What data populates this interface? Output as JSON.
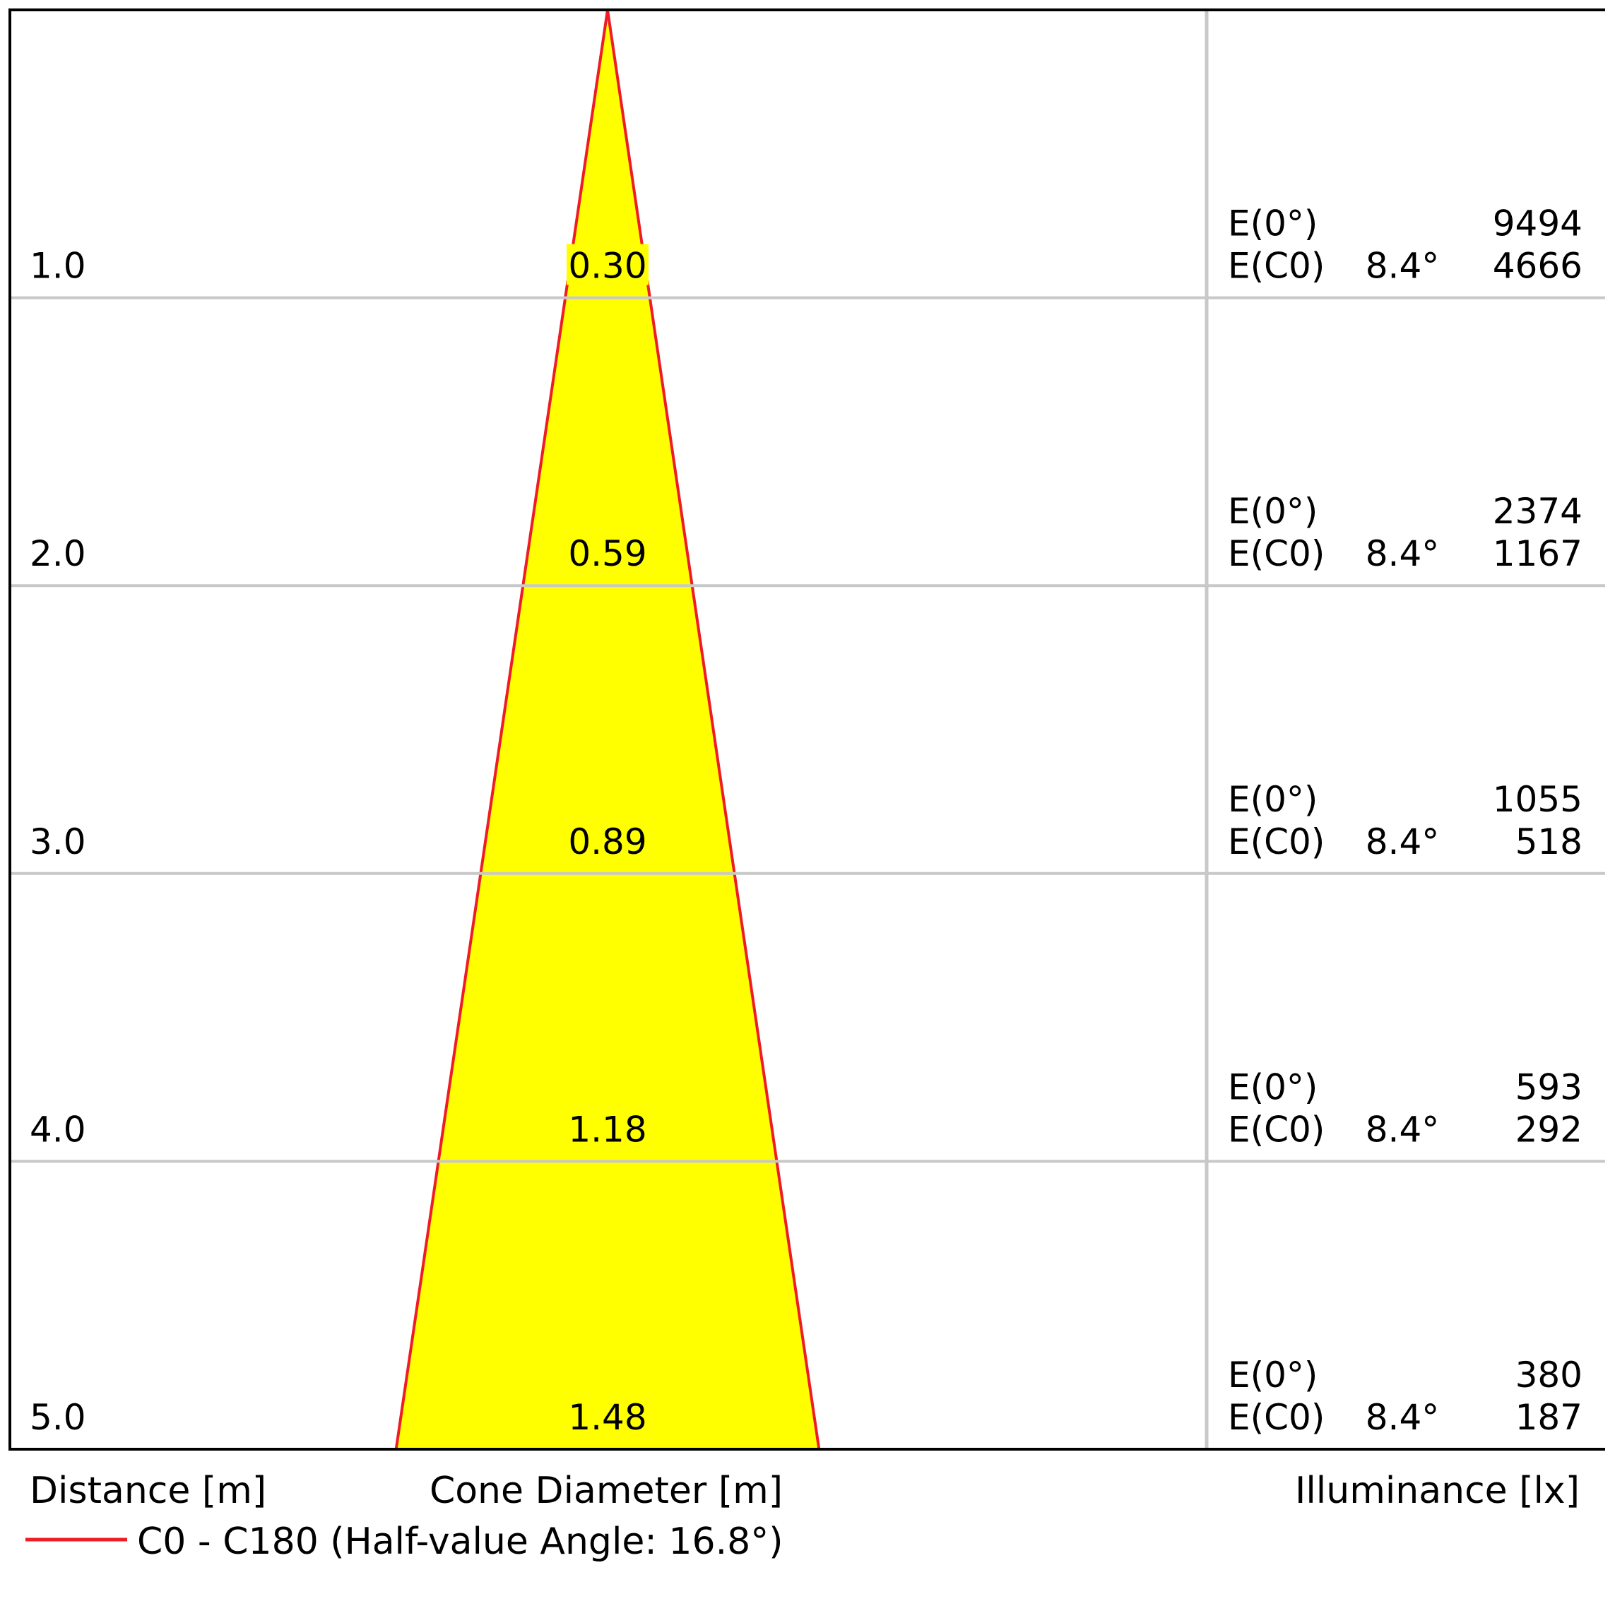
{
  "chart_data": {
    "type": "cone",
    "footer": {
      "distance_label": "Distance [m]",
      "cone_label": "Cone Diameter [m]",
      "illuminance_label": "Illuminance [lx]"
    },
    "legend": {
      "series_label": "C0 - C180 (Half-value Angle: 16.8°)",
      "line_color": "#ee1c25"
    },
    "colors": {
      "cone_fill": "#ffff00",
      "cone_edge": "#ee1c25",
      "grid": "#c8c8c8",
      "frame": "#000000"
    },
    "half_value_angle_deg": 16.8,
    "max_distance": 5.0,
    "rows": [
      {
        "distance": "1.0",
        "diameter": "0.30",
        "e0_label": "E(0°)",
        "e0": "9494",
        "ec0_label": "E(C0)",
        "angle": "8.4°",
        "ec0": "4666"
      },
      {
        "distance": "2.0",
        "diameter": "0.59",
        "e0_label": "E(0°)",
        "e0": "2374",
        "ec0_label": "E(C0)",
        "angle": "8.4°",
        "ec0": "1167"
      },
      {
        "distance": "3.0",
        "diameter": "0.89",
        "e0_label": "E(0°)",
        "e0": "1055",
        "ec0_label": "E(C0)",
        "angle": "8.4°",
        "ec0": "518"
      },
      {
        "distance": "4.0",
        "diameter": "1.18",
        "e0_label": "E(0°)",
        "e0": "593",
        "ec0_label": "E(C0)",
        "angle": "8.4°",
        "ec0": "292"
      },
      {
        "distance": "5.0",
        "diameter": "1.48",
        "e0_label": "E(0°)",
        "e0": "380",
        "ec0_label": "E(C0)",
        "angle": "8.4°",
        "ec0": "187"
      }
    ]
  }
}
